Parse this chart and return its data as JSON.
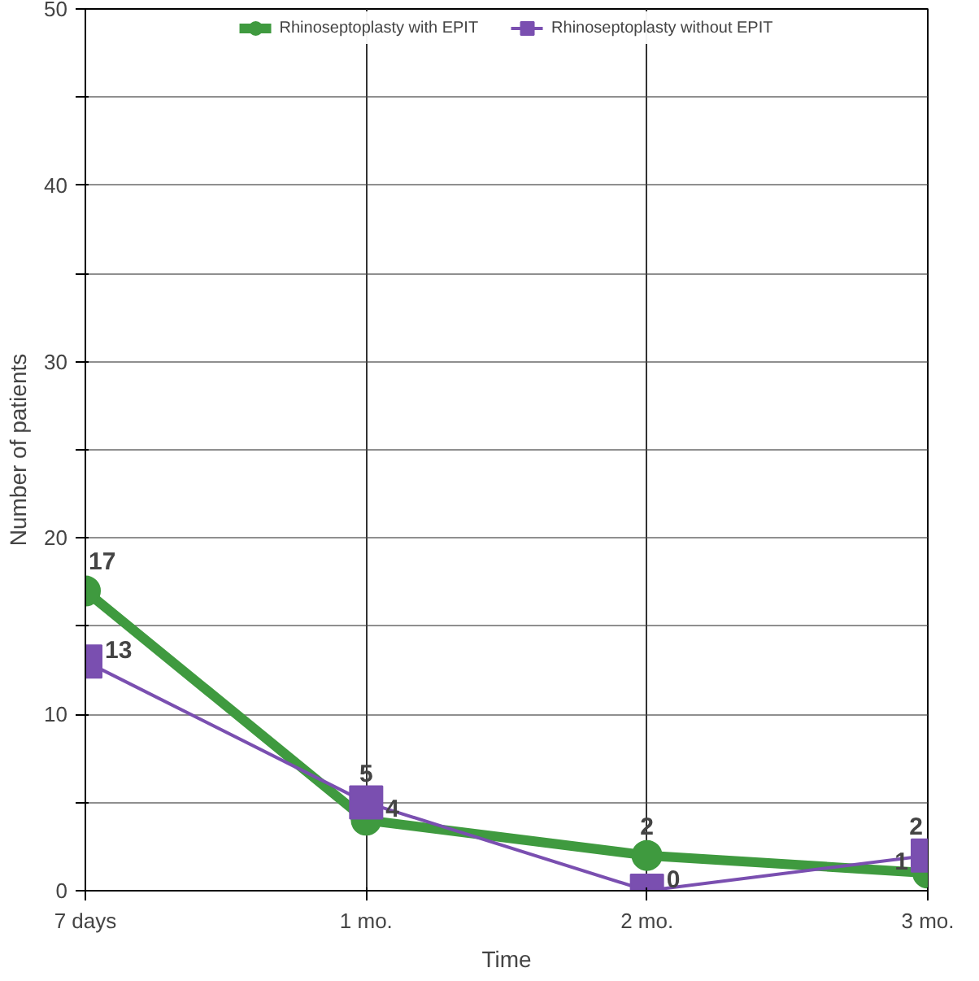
{
  "chart_data": {
    "type": "line",
    "xlabel": "Time",
    "ylabel": "Number of patients",
    "categories": [
      "7 days",
      "1 mo.",
      "2 mo.",
      "3 mo."
    ],
    "series": [
      {
        "name": "Rhinoseptoplasty with EPIT",
        "color": "#3f9a3f",
        "values": [
          17,
          4,
          2,
          1
        ],
        "marker": "circle"
      },
      {
        "name": "Rhinoseptoplasty without EPIT",
        "color": "#7a4fb0",
        "values": [
          13,
          5,
          0,
          2
        ],
        "marker": "square"
      }
    ],
    "ylim": [
      0,
      50
    ],
    "yticks": [
      0,
      {
        "value": 5,
        "label": null
      },
      10,
      {
        "value": 15,
        "label": null
      },
      20,
      {
        "value": 25,
        "label": null
      },
      30,
      {
        "value": 35,
        "label": null
      },
      40,
      {
        "value": 45,
        "label": null
      },
      50
    ],
    "grid": true,
    "legend": "top",
    "data_labels": true
  }
}
